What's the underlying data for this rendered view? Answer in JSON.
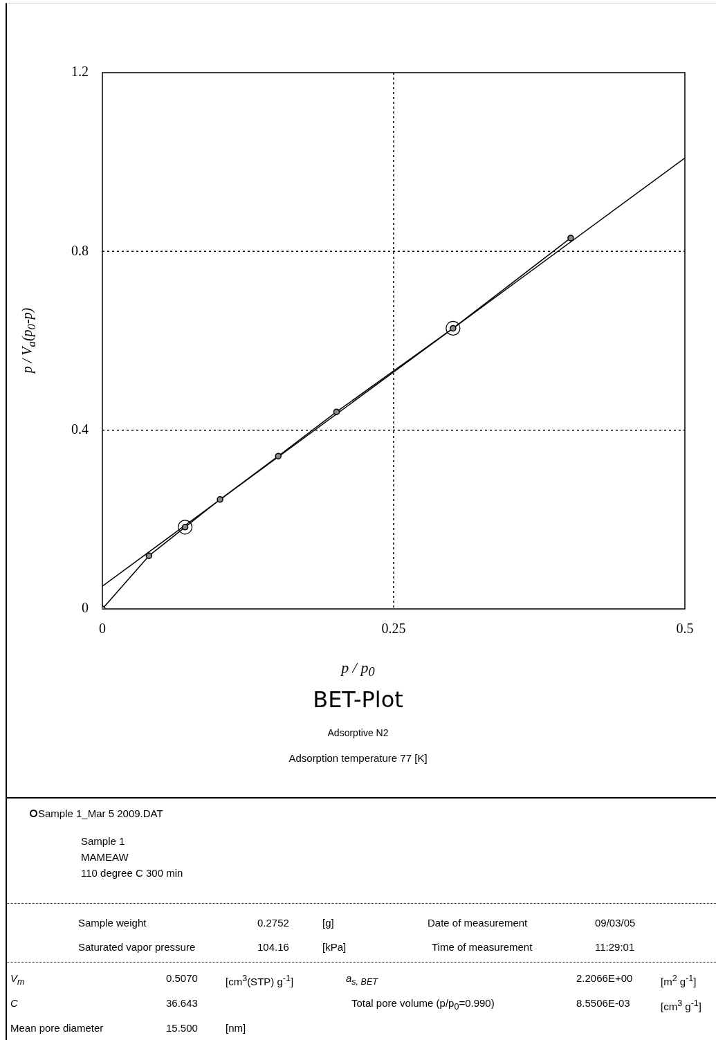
{
  "chart_data": {
    "type": "line",
    "title": "BET-Plot",
    "subtitle": "Adsorptive N2",
    "xlabel": "p / p$_{0}$",
    "ylabel": "p / V$_{a}$(p$_{0}$-p)",
    "xlim": [
      0,
      0.5
    ],
    "xticks": [
      0,
      0.25,
      0.5
    ],
    "ylim": [
      0,
      1.2
    ],
    "yticks": [
      0,
      0.4,
      0.8,
      1.2
    ],
    "grid": true,
    "legend": false,
    "line_style": "solid",
    "series": [
      {
        "type": "line",
        "color": "#000000",
        "marker": "circle",
        "x": [
          0,
          0.04,
          0.071,
          0.101,
          0.151,
          0.201,
          0.301,
          0.402
        ],
        "values": [
          0,
          0.119,
          0.183,
          0.245,
          0.342,
          0.441,
          0.628,
          0.83
        ]
      },
      {
        "type": "line",
        "color": "#000000",
        "marker": "none",
        "x": [
          0,
          0.5
        ],
        "values": [
          0.051,
          1.009
        ]
      },
      {
        "type": "scatter",
        "color": "#000000",
        "marker": "circle",
        "x": [
          0.071,
          0.301
        ],
        "values": [
          0.183,
          0.628
        ]
      }
    ],
    "annotations": [
      "Adsorption temperature 77 [K]",
      "Sample 1_Mar 5 2009.DAT",
      "Sample 1",
      "MAMEAW",
      "110 degree C 300 min",
      "Sample weight",
      "0.2752",
      "[g]",
      "Date of measurement",
      "09/03/05",
      "Saturated vapor pressure",
      "104.16",
      "[kPa]",
      "Time of measurement",
      "11:29:01",
      "V$_{m}$",
      "0.5070",
      "[cm$^{3}$(STP) g$^{-1}$]",
      "a$_{s, BET}$",
      "2.2066E+00",
      "[m$^{2}$ g$^{-1}$]",
      "C",
      "36.643",
      "Total pore volume (p/p$_{0}$=0.990)",
      "8.5506E-03",
      "[cm$^{3}$ g$^{-1}$]",
      "Mean pore diameter",
      "15.500",
      "[nm]"
    ]
  }
}
